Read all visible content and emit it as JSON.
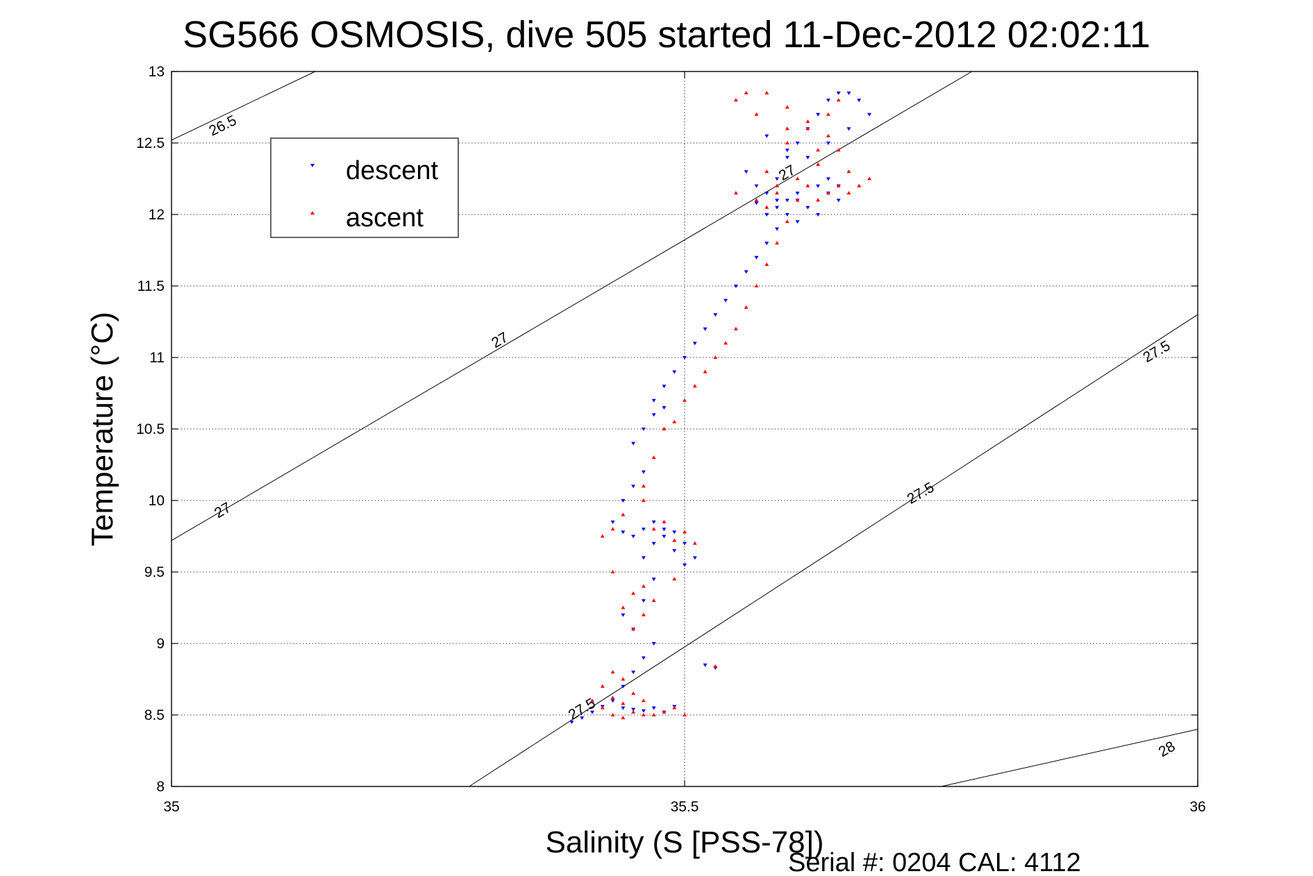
{
  "chart_data": {
    "type": "scatter",
    "title": "SG566 OSMOSIS, dive 505 started 11-Dec-2012 02:02:11",
    "xlabel": "Salinity (S [PSS-78])",
    "ylabel": "Temperature (°C)",
    "xlim": [
      35,
      36
    ],
    "ylim": [
      8,
      13
    ],
    "xticks": [
      35,
      35.5,
      36
    ],
    "xtick_labels": [
      "35",
      "35.5",
      "36"
    ],
    "yticks": [
      8,
      8.5,
      9,
      9.5,
      10,
      10.5,
      11,
      11.5,
      12,
      12.5,
      13
    ],
    "ytick_labels": [
      "8",
      "8.5",
      "9",
      "9.5",
      "10",
      "10.5",
      "11",
      "11.5",
      "12",
      "12.5",
      "13"
    ],
    "grid": true,
    "legend_position": "top-left",
    "series": [
      {
        "name": "descent",
        "color": "#0000ff",
        "marker": "triangle-down",
        "x": [
          35.39,
          35.4,
          35.41,
          35.42,
          35.43,
          35.44,
          35.45,
          35.46,
          35.47,
          35.48,
          35.49,
          35.44,
          35.45,
          35.46,
          35.47,
          35.45,
          35.44,
          35.46,
          35.47,
          35.46,
          35.47,
          35.48,
          35.49,
          35.5,
          35.51,
          35.5,
          35.49,
          35.48,
          35.47,
          35.46,
          35.45,
          35.44,
          35.43,
          35.44,
          35.45,
          35.46,
          35.45,
          35.46,
          35.47,
          35.48,
          35.47,
          35.48,
          35.49,
          35.5,
          35.51,
          35.52,
          35.53,
          35.54,
          35.55,
          35.56,
          35.57,
          35.58,
          35.59,
          35.6,
          35.61,
          35.6,
          35.59,
          35.58,
          35.57,
          35.58,
          35.59,
          35.6,
          35.61,
          35.62,
          35.63,
          35.64,
          35.65,
          35.66,
          35.67,
          35.68,
          35.66,
          35.64,
          35.62,
          35.6,
          35.58,
          35.56,
          35.57,
          35.59,
          35.61,
          35.63,
          35.64,
          35.65,
          35.63,
          35.61,
          35.62,
          35.64,
          35.65,
          35.52,
          35.53
        ],
        "y": [
          8.45,
          8.48,
          8.52,
          8.56,
          8.6,
          8.55,
          8.54,
          8.53,
          8.55,
          8.52,
          8.56,
          8.7,
          8.8,
          8.9,
          9.0,
          9.1,
          9.2,
          9.3,
          9.45,
          9.6,
          9.7,
          9.75,
          9.78,
          9.7,
          9.6,
          9.55,
          9.65,
          9.8,
          9.85,
          9.8,
          9.75,
          9.78,
          9.85,
          10.0,
          10.1,
          10.2,
          10.4,
          10.5,
          10.6,
          10.65,
          10.7,
          10.8,
          10.9,
          11.0,
          11.1,
          11.2,
          11.3,
          11.4,
          11.5,
          11.6,
          11.7,
          11.8,
          11.9,
          12.0,
          12.1,
          12.1,
          12.05,
          12.0,
          12.08,
          12.15,
          12.25,
          12.4,
          12.5,
          12.6,
          12.7,
          12.8,
          12.85,
          12.85,
          12.8,
          12.7,
          12.6,
          12.5,
          12.4,
          12.45,
          12.55,
          12.3,
          12.2,
          12.1,
          12.15,
          12.2,
          12.25,
          12.1,
          12.0,
          11.95,
          12.05,
          12.15,
          12.2,
          8.85,
          8.83
        ]
      },
      {
        "name": "ascent",
        "color": "#ff0000",
        "marker": "triangle-up",
        "x": [
          35.41,
          35.42,
          35.43,
          35.44,
          35.45,
          35.46,
          35.47,
          35.48,
          35.49,
          35.5,
          35.42,
          35.43,
          35.44,
          35.45,
          35.46,
          35.44,
          35.43,
          35.45,
          35.46,
          35.47,
          35.49,
          35.46,
          35.45,
          35.44,
          35.43,
          35.42,
          35.43,
          35.44,
          35.46,
          35.48,
          35.5,
          35.51,
          35.49,
          35.47,
          35.46,
          35.47,
          35.48,
          35.49,
          35.5,
          35.51,
          35.52,
          35.53,
          35.54,
          35.55,
          35.56,
          35.57,
          35.58,
          35.59,
          35.6,
          35.61,
          35.62,
          35.63,
          35.64,
          35.65,
          35.66,
          35.67,
          35.68,
          35.66,
          35.63,
          35.6,
          35.57,
          35.55,
          35.56,
          35.58,
          35.6,
          35.62,
          35.64,
          35.65,
          35.63,
          35.61,
          35.59,
          35.58,
          35.6,
          35.62,
          35.64,
          35.65,
          35.55,
          35.57,
          35.58,
          35.59,
          35.53
        ],
        "y": [
          8.6,
          8.55,
          8.5,
          8.48,
          8.52,
          8.5,
          8.5,
          8.52,
          8.55,
          8.5,
          8.7,
          8.8,
          8.75,
          8.65,
          8.6,
          8.58,
          8.62,
          9.1,
          9.2,
          9.3,
          9.45,
          9.4,
          9.35,
          9.25,
          9.5,
          9.75,
          9.8,
          9.9,
          10.0,
          9.85,
          9.78,
          9.7,
          9.72,
          9.8,
          10.1,
          10.3,
          10.5,
          10.55,
          10.7,
          10.8,
          10.9,
          11.0,
          11.1,
          11.2,
          11.35,
          11.5,
          11.65,
          11.8,
          11.95,
          12.1,
          12.2,
          12.1,
          12.15,
          12.2,
          12.15,
          12.2,
          12.25,
          12.3,
          12.45,
          12.6,
          12.7,
          12.8,
          12.85,
          12.85,
          12.75,
          12.65,
          12.55,
          12.45,
          12.35,
          12.25,
          12.15,
          12.3,
          12.5,
          12.6,
          12.7,
          12.8,
          12.15,
          12.1,
          12.05,
          12.2,
          8.84
        ]
      }
    ],
    "contours": [
      {
        "label": "26.5",
        "x": [
          35.0,
          35.14
        ],
        "y": [
          12.52,
          13.0
        ]
      },
      {
        "label": "27",
        "x": [
          35.0,
          35.78
        ],
        "y": [
          9.72,
          13.0
        ]
      },
      {
        "label": "27.5",
        "x": [
          35.29,
          36.0
        ],
        "y": [
          8.0,
          11.3
        ]
      },
      {
        "label": "28",
        "x": [
          35.75,
          36.0
        ],
        "y": [
          8.0,
          8.4
        ]
      }
    ],
    "contour_labels": [
      {
        "text": "26.5",
        "x": 35.05,
        "y": 12.62,
        "angle": -26
      },
      {
        "text": "27",
        "x": 35.32,
        "y": 11.12,
        "angle": -30
      },
      {
        "text": "27",
        "x": 35.05,
        "y": 9.93,
        "angle": -30
      },
      {
        "text": "27",
        "x": 35.6,
        "y": 12.29,
        "angle": -30
      },
      {
        "text": "27.5",
        "x": 35.73,
        "y": 10.05,
        "angle": -30
      },
      {
        "text": "27.5",
        "x": 35.96,
        "y": 11.04,
        "angle": -30
      },
      {
        "text": "27.5",
        "x": 35.4,
        "y": 8.54,
        "angle": -30
      },
      {
        "text": "28",
        "x": 35.97,
        "y": 8.26,
        "angle": -30
      }
    ]
  },
  "legend": {
    "descent_label": "descent",
    "ascent_label": "ascent"
  },
  "footer": {
    "serial_text": "Serial #: 0204  CAL: 4112"
  }
}
